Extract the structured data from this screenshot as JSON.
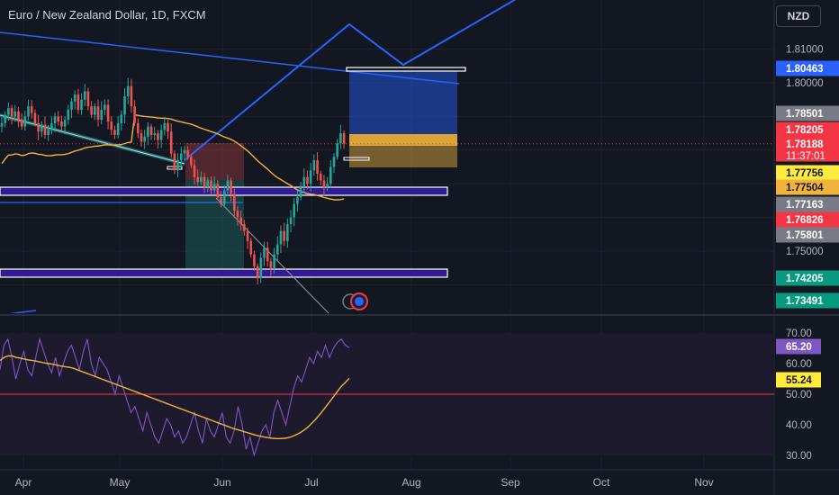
{
  "header": {
    "title": "Euro / New Zealand Dollar, 1D, FXCM",
    "currency_button": "NZD"
  },
  "colors": {
    "background": "#131722",
    "up": "#26a69a",
    "down": "#ef5350",
    "trend_blue": "#2962ff",
    "ma_yellow": "#f0b43c",
    "rsi_purple": "#7e57c2",
    "rsi_band": "#1e1a2e",
    "rsi_mid": "#f23645"
  },
  "chart_data": [
    {
      "type": "candlestick",
      "title": "Euro / New Zealand Dollar, 1D, FXCM",
      "symbol": "EURNZD",
      "timeframe": "1D",
      "exchange": "FXCM",
      "x_ticks": [
        "Apr",
        "May",
        "Jun",
        "Jul",
        "Aug",
        "Sep",
        "Oct",
        "Nov"
      ],
      "y_ticks": [
        "1.81000",
        "1.80000",
        "1.75000"
      ],
      "y_range": [
        1.725,
        1.8225
      ],
      "price_labels": [
        {
          "value": "1.80463",
          "color": "#2962ff",
          "text_color": "#ffffff"
        },
        {
          "value": "1.78501",
          "color": "#787b86",
          "text_color": "#ffffff"
        },
        {
          "value": "1.78205",
          "color": "#f23645",
          "text_color": "#ffffff"
        },
        {
          "value": "1.78188",
          "sub": "11:37:01",
          "color": "#f23645",
          "text_color": "#ffffff"
        },
        {
          "value": "1.77756",
          "color": "#ffeb3b",
          "text_color": "#131722"
        },
        {
          "value": "1.77504",
          "color": "#f0b43c",
          "text_color": "#131722"
        },
        {
          "value": "1.77163",
          "color": "#787b86",
          "text_color": "#ffffff"
        },
        {
          "value": "1.76826",
          "color": "#f23645",
          "text_color": "#ffffff"
        },
        {
          "value": "1.75801",
          "color": "#787b86",
          "text_color": "#ffffff"
        },
        {
          "value": "1.74205",
          "color": "#089981",
          "text_color": "#ffffff"
        },
        {
          "value": "1.73491",
          "color": "#089981",
          "text_color": "#ffffff"
        }
      ],
      "last_price": 1.78188,
      "countdown": "11:37:01",
      "horizontal_zones": [
        1.7725,
        1.744,
        1.8035
      ],
      "closes": [
        1.788,
        1.7905,
        1.7925,
        1.79,
        1.7915,
        1.789,
        1.787,
        1.79,
        1.793,
        1.791,
        1.788,
        1.7855,
        1.7875,
        1.7845,
        1.786,
        1.788,
        1.79,
        1.7885,
        1.787,
        1.789,
        1.792,
        1.7945,
        1.7965,
        1.792,
        1.795,
        1.7975,
        1.793,
        1.7905,
        1.793,
        1.789,
        1.792,
        1.7935,
        1.7885,
        1.786,
        1.7845,
        1.788,
        1.7905,
        1.796,
        1.799,
        1.793,
        1.788,
        1.785,
        1.7825,
        1.784,
        1.787,
        1.7845,
        1.785,
        1.783,
        1.786,
        1.788,
        1.7855,
        1.779,
        1.774,
        1.777,
        1.779,
        1.78,
        1.778,
        1.7755,
        1.772,
        1.7705,
        1.772,
        1.769,
        1.771,
        1.768,
        1.77,
        1.766,
        1.764,
        1.768,
        1.771,
        1.767,
        1.762,
        1.76,
        1.758,
        1.756,
        1.753,
        1.749,
        1.7455,
        1.742,
        1.748,
        1.751,
        1.747,
        1.745,
        1.749,
        1.752,
        1.756,
        1.753,
        1.758,
        1.76,
        1.764,
        1.766,
        1.769,
        1.772,
        1.77,
        1.774,
        1.777,
        1.773,
        1.771,
        1.769,
        1.77,
        1.775,
        1.778,
        1.782,
        1.785,
        1.7819
      ]
    },
    {
      "type": "line",
      "title": "",
      "y_ticks": [
        "70.00",
        "60.00",
        "50.00",
        "40.00",
        "30.00"
      ],
      "y_range": [
        28,
        72
      ],
      "band": [
        30,
        70
      ],
      "midline": 50,
      "series": [
        {
          "name": "",
          "color": "#7e57c2",
          "last_label": "65.20",
          "values": [
            58,
            66,
            68,
            62,
            55,
            60,
            64,
            58,
            56,
            62,
            68,
            64,
            60,
            57,
            62,
            56,
            60,
            64,
            66,
            62,
            58,
            64,
            68,
            60,
            56,
            62,
            60,
            58,
            54,
            50,
            56,
            52,
            48,
            44,
            46,
            42,
            38,
            44,
            40,
            36,
            34,
            38,
            42,
            40,
            36,
            38,
            34,
            36,
            40,
            44,
            38,
            34,
            42,
            38,
            36,
            40,
            44,
            36,
            34,
            38,
            46,
            40,
            32,
            36,
            30,
            34,
            38,
            40,
            36,
            44,
            48,
            44,
            40,
            46,
            52,
            56,
            54,
            58,
            62,
            60,
            64,
            62,
            66,
            62,
            65,
            67,
            68,
            66,
            65.2
          ]
        },
        {
          "name": "",
          "color": "#f0b43c",
          "last_label": "55.24",
          "values": [
            61,
            62,
            62.5,
            62.5,
            62,
            61.8,
            61.5,
            61.2,
            61,
            60.8,
            60.5,
            60.2,
            60,
            59.8,
            59.5,
            59.2,
            59,
            58.8,
            58.5,
            58,
            57.5,
            57,
            56.5,
            56,
            55.5,
            55,
            54.5,
            54,
            53.5,
            53,
            52.5,
            52,
            51.5,
            51,
            50.5,
            50,
            49.5,
            49,
            48.5,
            48,
            47.5,
            47,
            46.5,
            46,
            45.5,
            45,
            44.5,
            44,
            43.5,
            43,
            42.5,
            42,
            41.5,
            41,
            40.5,
            40,
            39.5,
            39,
            38.6,
            38.2,
            37.8,
            37.4,
            37,
            36.6,
            36.3,
            36,
            35.8,
            35.6,
            35.5,
            35.5,
            35.6,
            35.8,
            36.2,
            36.8,
            37.5,
            38.4,
            39.5,
            40.8,
            42.2,
            43.8,
            45.5,
            47.2,
            49,
            50.8,
            52.5,
            53.8,
            55.24
          ]
        }
      ]
    }
  ]
}
